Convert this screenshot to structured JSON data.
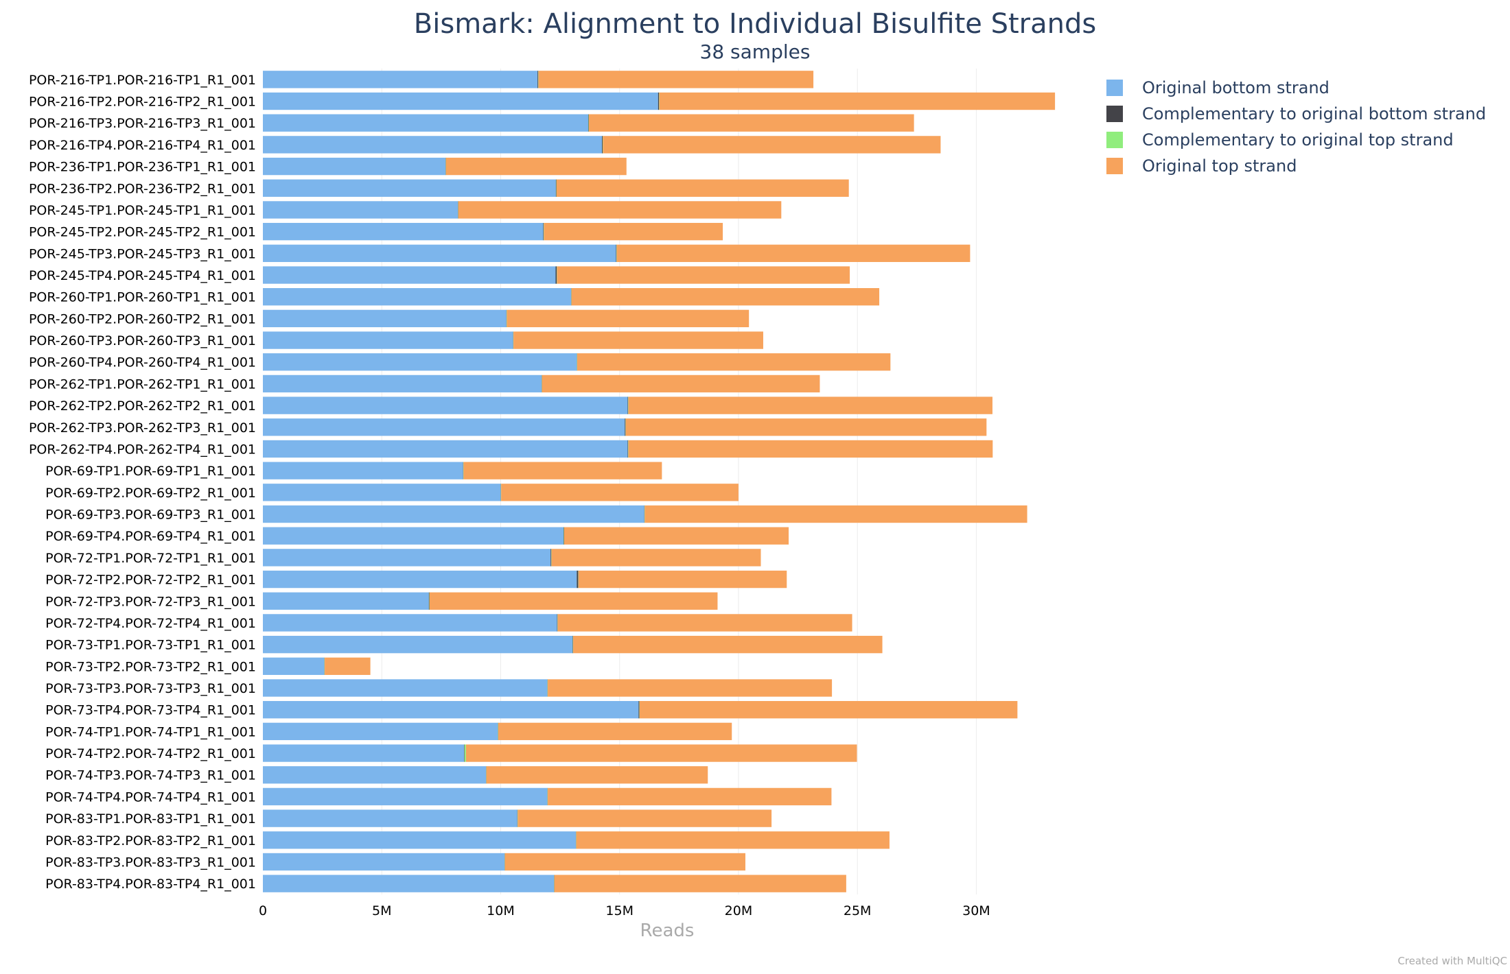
{
  "chart_data": {
    "type": "bar",
    "orientation": "horizontal",
    "stacked": true,
    "title": "Bismark: Alignment to Individual Bisulfite Strands",
    "subtitle": "38 samples",
    "xlabel": "Reads",
    "xlim": [
      0,
      34000000
    ],
    "xticks": [
      {
        "value": 0,
        "label": "0"
      },
      {
        "value": 5000000,
        "label": "5M"
      },
      {
        "value": 10000000,
        "label": "10M"
      },
      {
        "value": 15000000,
        "label": "15M"
      },
      {
        "value": 20000000,
        "label": "20M"
      },
      {
        "value": 25000000,
        "label": "25M"
      },
      {
        "value": 30000000,
        "label": "30M"
      }
    ],
    "grid": true,
    "legend_position": "top-right",
    "categories": [
      "POR-216-TP1.POR-216-TP1_R1_001",
      "POR-216-TP2.POR-216-TP2_R1_001",
      "POR-216-TP3.POR-216-TP3_R1_001",
      "POR-216-TP4.POR-216-TP4_R1_001",
      "POR-236-TP1.POR-236-TP1_R1_001",
      "POR-236-TP2.POR-236-TP2_R1_001",
      "POR-245-TP1.POR-245-TP1_R1_001",
      "POR-245-TP2.POR-245-TP2_R1_001",
      "POR-245-TP3.POR-245-TP3_R1_001",
      "POR-245-TP4.POR-245-TP4_R1_001",
      "POR-260-TP1.POR-260-TP1_R1_001",
      "POR-260-TP2.POR-260-TP2_R1_001",
      "POR-260-TP3.POR-260-TP3_R1_001",
      "POR-260-TP4.POR-260-TP4_R1_001",
      "POR-262-TP1.POR-262-TP1_R1_001",
      "POR-262-TP2.POR-262-TP2_R1_001",
      "POR-262-TP3.POR-262-TP3_R1_001",
      "POR-262-TP4.POR-262-TP4_R1_001",
      "POR-69-TP1.POR-69-TP1_R1_001",
      "POR-69-TP2.POR-69-TP2_R1_001",
      "POR-69-TP3.POR-69-TP3_R1_001",
      "POR-69-TP4.POR-69-TP4_R1_001",
      "POR-72-TP1.POR-72-TP1_R1_001",
      "POR-72-TP2.POR-72-TP2_R1_001",
      "POR-72-TP3.POR-72-TP3_R1_001",
      "POR-72-TP4.POR-72-TP4_R1_001",
      "POR-73-TP1.POR-73-TP1_R1_001",
      "POR-73-TP2.POR-73-TP2_R1_001",
      "POR-73-TP3.POR-73-TP3_R1_001",
      "POR-73-TP4.POR-73-TP4_R1_001",
      "POR-74-TP1.POR-74-TP1_R1_001",
      "POR-74-TP2.POR-74-TP2_R1_001",
      "POR-74-TP3.POR-74-TP3_R1_001",
      "POR-74-TP4.POR-74-TP4_R1_001",
      "POR-83-TP1.POR-83-TP1_R1_001",
      "POR-83-TP2.POR-83-TP2_R1_001",
      "POR-83-TP3.POR-83-TP3_R1_001",
      "POR-83-TP4.POR-83-TP4_R1_001"
    ],
    "series": [
      {
        "name": "Original bottom strand",
        "color": "#7cb5ec",
        "values": [
          11550000,
          16620000,
          13680000,
          14260000,
          7680000,
          12320000,
          8200000,
          11790000,
          14850000,
          12310000,
          12960000,
          10240000,
          10520000,
          13200000,
          11720000,
          15340000,
          15220000,
          15340000,
          8420000,
          10000000,
          16040000,
          12640000,
          12100000,
          13200000,
          6980000,
          12370000,
          13020000,
          2580000,
          11960000,
          15800000,
          9880000,
          8460000,
          9380000,
          11960000,
          10700000,
          13160000,
          10160000,
          12240000
        ]
      },
      {
        "name": "Complementary to original bottom strand",
        "color": "#434348",
        "values": [
          30000,
          40000,
          20000,
          30000,
          10000,
          20000,
          10000,
          20000,
          20000,
          50000,
          10000,
          10000,
          10000,
          10000,
          10000,
          20000,
          30000,
          20000,
          10000,
          10000,
          10000,
          20000,
          30000,
          60000,
          20000,
          20000,
          20000,
          10000,
          10000,
          30000,
          10000,
          20000,
          10000,
          10000,
          10000,
          10000,
          10000,
          10000
        ]
      },
      {
        "name": "Complementary to original top strand",
        "color": "#90ed7d",
        "values": [
          10000,
          10000,
          10000,
          10000,
          10000,
          10000,
          10000,
          10000,
          10000,
          10000,
          10000,
          10000,
          10000,
          10000,
          10000,
          10000,
          10000,
          10000,
          10000,
          10000,
          10000,
          10000,
          10000,
          10000,
          10000,
          10000,
          10000,
          10000,
          10000,
          10000,
          10000,
          60000,
          10000,
          10000,
          10000,
          10000,
          10000,
          10000
        ]
      },
      {
        "name": "Original top strand",
        "color": "#f7a35c",
        "values": [
          11560000,
          16640000,
          13670000,
          14200000,
          7590000,
          12290000,
          13580000,
          7520000,
          14860000,
          12310000,
          12940000,
          10180000,
          10500000,
          13170000,
          11680000,
          15310000,
          15170000,
          15320000,
          8340000,
          9980000,
          16080000,
          9440000,
          8800000,
          8760000,
          12110000,
          12380000,
          13000000,
          1920000,
          11950000,
          15890000,
          9820000,
          16440000,
          9310000,
          11930000,
          10670000,
          13170000,
          10110000,
          12270000
        ]
      }
    ]
  },
  "credit": "Created with MultiQC"
}
